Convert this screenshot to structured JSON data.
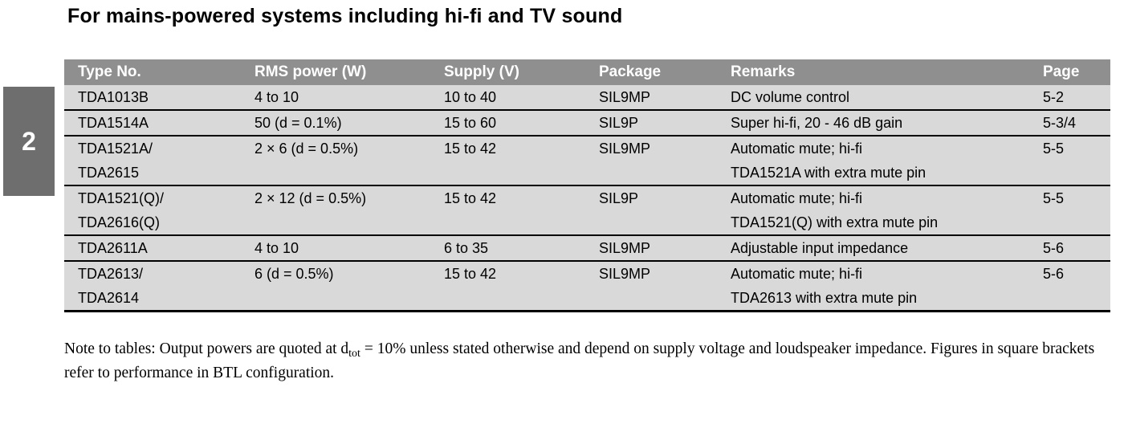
{
  "page": {
    "title": "For mains-powered systems including hi-fi and TV sound",
    "section_number": "2"
  },
  "table": {
    "headers": {
      "type_no": "Type No.",
      "rms_power": "RMS power (W)",
      "supply": "Supply (V)",
      "package": "Package",
      "remarks": "Remarks",
      "page": "Page"
    },
    "rows": [
      {
        "type_no": [
          "TDA1013B"
        ],
        "rms_power": "4 to 10",
        "supply": "10 to 40",
        "package": "SIL9MP",
        "remarks": [
          "DC volume control"
        ],
        "page": "5-2"
      },
      {
        "type_no": [
          "TDA1514A"
        ],
        "rms_power": "50 (d = 0.1%)",
        "supply": "15 to 60",
        "package": "SIL9P",
        "remarks": [
          "Super hi-fi, 20 - 46 dB gain"
        ],
        "page": "5-3/4"
      },
      {
        "type_no": [
          "TDA1521A/",
          "TDA2615"
        ],
        "rms_power": "2 × 6 (d = 0.5%)",
        "supply": "15 to 42",
        "package": "SIL9MP",
        "remarks": [
          "Automatic mute; hi-fi",
          "TDA1521A with extra mute pin"
        ],
        "page": "5-5"
      },
      {
        "type_no": [
          "TDA1521(Q)/",
          "TDA2616(Q)"
        ],
        "rms_power": "2 × 12 (d = 0.5%)",
        "supply": "15 to 42",
        "package": "SIL9P",
        "remarks": [
          "Automatic mute; hi-fi",
          "TDA1521(Q) with extra mute pin"
        ],
        "page": "5-5"
      },
      {
        "type_no": [
          "TDA2611A"
        ],
        "rms_power": "4 to 10",
        "supply": "6 to 35",
        "package": "SIL9MP",
        "remarks": [
          "Adjustable input impedance"
        ],
        "page": "5-6"
      },
      {
        "type_no": [
          "TDA2613/",
          "TDA2614"
        ],
        "rms_power": "6 (d = 0.5%)",
        "supply": "15 to 42",
        "package": "SIL9MP",
        "remarks": [
          "Automatic mute; hi-fi",
          "TDA2613 with extra mute pin"
        ],
        "page": "5-6"
      }
    ]
  },
  "note": {
    "label": "Note to tables:",
    "text_before_sub": " Output powers are quoted at d",
    "subscript": "tot",
    "text_after_sub": " = 10% unless stated otherwise and depend on supply voltage and loudspeaker impedance. Figures in square brackets refer to performance in BTL configuration."
  }
}
